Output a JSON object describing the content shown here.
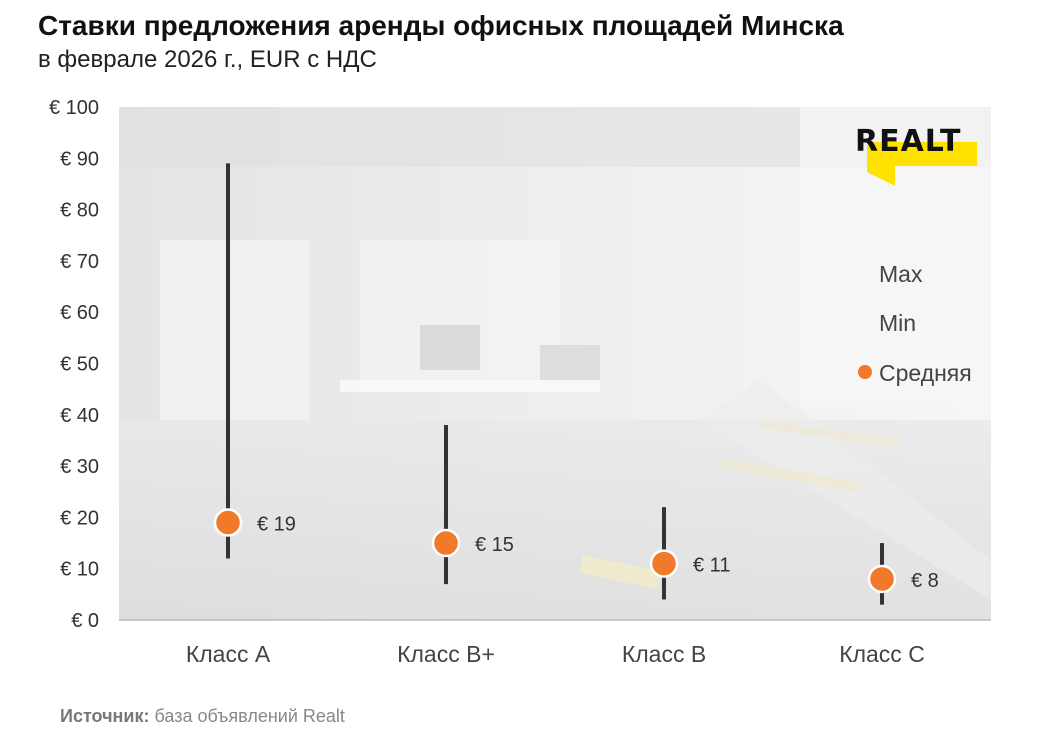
{
  "title": "Ставки предложения аренды офисных площадей Минска",
  "subtitle": "в феврале 2026 г., EUR с НДС",
  "source_label": "Источник:",
  "source_text": "база объявлений Realt",
  "brand": "REALT",
  "colors": {
    "accent": "#f07a2a",
    "range_line": "#333333",
    "brand_yellow": "#ffe200"
  },
  "chart_data": {
    "type": "range-dot",
    "title": "Ставки предложения аренды офисных площадей Минска",
    "subtitle": "в феврале 2026 г., EUR с НДС",
    "categories": [
      "Класс А",
      "Класс В+",
      "Класс В",
      "Класс С"
    ],
    "series": [
      {
        "name": "Max",
        "values": [
          89,
          38,
          22,
          15
        ]
      },
      {
        "name": "Min",
        "values": [
          12,
          7,
          4,
          3
        ]
      },
      {
        "name": "Средняя",
        "values": [
          19,
          15,
          11,
          8
        ]
      }
    ],
    "data_labels": [
      "€ 19",
      "€ 15",
      "€ 11",
      "€ 8"
    ],
    "yticks": [
      0,
      10,
      20,
      30,
      40,
      50,
      60,
      70,
      80,
      90,
      100
    ],
    "ytick_labels": [
      "€ 0",
      "€ 10",
      "€ 20",
      "€ 30",
      "€ 40",
      "€ 50",
      "€ 60",
      "€ 70",
      "€ 80",
      "€ 90",
      "€ 100"
    ],
    "ylim": [
      0,
      100
    ],
    "grid": false,
    "legend": [
      "Max",
      "Min",
      "Средняя"
    ],
    "legend_position": "right"
  }
}
